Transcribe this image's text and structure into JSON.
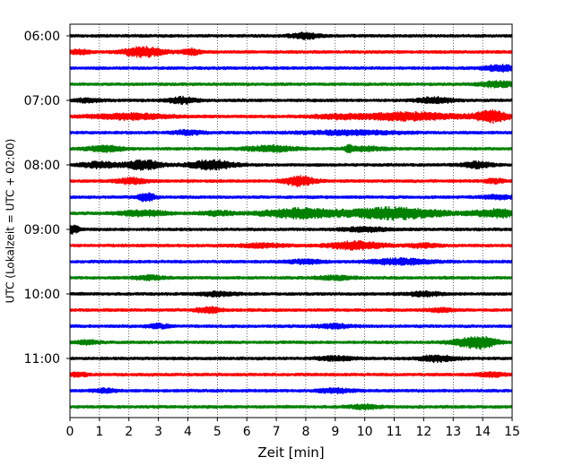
{
  "chart_data": {
    "type": "line",
    "title": "",
    "xlabel": "Zeit  [min]",
    "ylabel": "UTC (Lokalzeit = UTC + 02:00)",
    "xlim": [
      0,
      15
    ],
    "x_ticks": [
      "0",
      "1",
      "2",
      "3",
      "4",
      "5",
      "6",
      "7",
      "8",
      "9",
      "10",
      "11",
      "12",
      "13",
      "14",
      "15"
    ],
    "y_ticks": [
      "06:00",
      "07:00",
      "08:00",
      "09:00",
      "10:00",
      "11:00"
    ],
    "grid": "vertical dotted at each minute",
    "legend": "none",
    "line_minutes": 15,
    "trace_colors": [
      "#000000",
      "#ff0000",
      "#0000ff",
      "#008000"
    ],
    "series": [
      {
        "start": "06:00",
        "bursts": [
          [
            8.0,
            0.5,
            3
          ]
        ]
      },
      {
        "start": "06:15",
        "bursts": [
          [
            2.5,
            0.7,
            5
          ],
          [
            4.1,
            0.3,
            3
          ],
          [
            0.3,
            0.4,
            2
          ]
        ]
      },
      {
        "start": "06:30",
        "bursts": [
          [
            14.6,
            0.6,
            3
          ]
        ]
      },
      {
        "start": "06:45",
        "bursts": [
          [
            14.5,
            0.6,
            3
          ]
        ]
      },
      {
        "start": "07:00",
        "bursts": [
          [
            3.8,
            0.5,
            3
          ],
          [
            12.4,
            0.6,
            3
          ],
          [
            0.6,
            0.4,
            2
          ]
        ]
      },
      {
        "start": "07:15",
        "bursts": [
          [
            14.3,
            0.6,
            6
          ],
          [
            11.5,
            1.6,
            4
          ],
          [
            2.0,
            1.3,
            3
          ],
          [
            9.0,
            0.8,
            2
          ]
        ]
      },
      {
        "start": "07:30",
        "bursts": [
          [
            9.5,
            1.6,
            2
          ],
          [
            4.0,
            0.5,
            2
          ]
        ]
      },
      {
        "start": "07:45",
        "bursts": [
          [
            1.2,
            0.6,
            3
          ],
          [
            6.8,
            0.8,
            3
          ],
          [
            10.0,
            0.7,
            2
          ],
          [
            9.45,
            0.1,
            3
          ]
        ]
      },
      {
        "start": "08:00",
        "bursts": [
          [
            2.5,
            0.6,
            5
          ],
          [
            4.8,
            0.7,
            5
          ],
          [
            1.0,
            0.6,
            3
          ],
          [
            13.8,
            0.5,
            3
          ]
        ]
      },
      {
        "start": "08:15",
        "bursts": [
          [
            7.8,
            0.5,
            5
          ],
          [
            2.1,
            0.5,
            3
          ],
          [
            14.4,
            0.3,
            2
          ]
        ]
      },
      {
        "start": "08:30",
        "bursts": [
          [
            2.6,
            0.3,
            4
          ],
          [
            14.5,
            0.5,
            2
          ]
        ]
      },
      {
        "start": "08:45",
        "bursts": [
          [
            7.8,
            1.3,
            5
          ],
          [
            11.0,
            1.6,
            6
          ],
          [
            14.5,
            0.8,
            4
          ],
          [
            2.5,
            0.8,
            3
          ],
          [
            5.0,
            0.6,
            2
          ]
        ]
      },
      {
        "start": "09:00",
        "bursts": [
          [
            0.1,
            0.2,
            4
          ],
          [
            10.0,
            0.8,
            2
          ]
        ]
      },
      {
        "start": "09:15",
        "bursts": [
          [
            9.7,
            0.9,
            4
          ],
          [
            6.5,
            0.8,
            2
          ],
          [
            12.0,
            0.5,
            2
          ]
        ]
      },
      {
        "start": "09:30",
        "bursts": [
          [
            11.2,
            1.0,
            3
          ],
          [
            8.0,
            0.6,
            2
          ]
        ]
      },
      {
        "start": "09:45",
        "bursts": [
          [
            2.7,
            0.5,
            2
          ],
          [
            9.0,
            0.6,
            2
          ]
        ]
      },
      {
        "start": "10:00",
        "bursts": [
          [
            5.0,
            0.6,
            2
          ],
          [
            12.0,
            0.6,
            2
          ]
        ]
      },
      {
        "start": "10:15",
        "bursts": [
          [
            4.7,
            0.4,
            3
          ],
          [
            12.6,
            0.4,
            2
          ]
        ]
      },
      {
        "start": "10:30",
        "bursts": [
          [
            9.0,
            0.6,
            2
          ],
          [
            3.0,
            0.4,
            2
          ]
        ]
      },
      {
        "start": "10:45",
        "bursts": [
          [
            14.0,
            0.5,
            5
          ],
          [
            13.4,
            0.6,
            3
          ],
          [
            0.6,
            0.4,
            2
          ]
        ]
      },
      {
        "start": "11:00",
        "bursts": [
          [
            12.5,
            0.6,
            3
          ],
          [
            9.0,
            0.6,
            2
          ]
        ]
      },
      {
        "start": "11:15",
        "bursts": [
          [
            14.3,
            0.5,
            2
          ],
          [
            0.3,
            0.3,
            2
          ]
        ]
      },
      {
        "start": "11:30",
        "bursts": [
          [
            1.2,
            0.4,
            2
          ],
          [
            9.0,
            0.6,
            2
          ]
        ]
      },
      {
        "start": "11:45",
        "bursts": [
          [
            10.0,
            0.5,
            2
          ]
        ]
      }
    ]
  }
}
